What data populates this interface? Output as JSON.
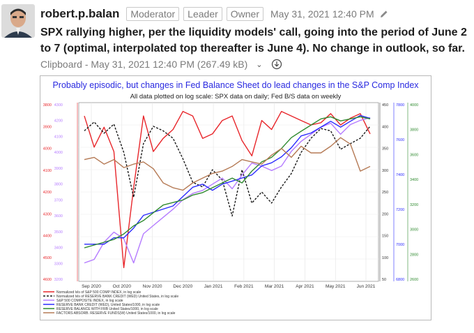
{
  "post": {
    "username": "robert.p.balan",
    "badges": [
      "Moderator",
      "Leader",
      "Owner"
    ],
    "timestamp": "May 31, 2021 12:40 PM",
    "body": "SPX rallying higher, per the liquidity models' call, going into the period of June 2 to 7 (optimal, interpolated top thereafter is June 4). No change in outlook, so far."
  },
  "attachment": {
    "label": "Clipboard - May 31, 2021 12:40 PM (267.49 kB)"
  },
  "chart_data": {
    "type": "line",
    "title": "Probably episodic, but changes in Fed Balance Sheet do lead changes in the S&P Comp Index",
    "subtitle": "All data plotted on log scale: SPX data on daily; Fed B/S data on weekly",
    "x_ticks": [
      "Sep 2020",
      "Oct 2020",
      "Nov 2020",
      "Dec 2020",
      "Jan 2021",
      "Feb 2021",
      "Mar 2021",
      "Apr 2021",
      "May 2021",
      "Jun 2021"
    ],
    "left_axis_outer": [
      "3800",
      "3900",
      "4000",
      "4100",
      "4200",
      "4300",
      "4400",
      "4500",
      "4600"
    ],
    "left_axis_inner": [
      "4300",
      "4200",
      "4100",
      "4000",
      "3900",
      "3800",
      "3700",
      "3600",
      "3500",
      "3400",
      "3300",
      "3200"
    ],
    "right_axis_1": [
      "450",
      "400",
      "350",
      "300",
      "250",
      "200",
      "150",
      "100",
      "50"
    ],
    "right_axis_2": [
      "7800",
      "7600",
      "7400",
      "7200",
      "7000",
      "6800"
    ],
    "right_axis_3": [
      "4000",
      "3800",
      "3600",
      "3400",
      "3200",
      "3000",
      "2800",
      "2600"
    ],
    "legend": [
      "Normalized lvls of S&P 500 COMP INDEX, in log scale",
      "Normalized lvls of RESERVE BANK CREDIT (WED)  United States, in log scale",
      "S&P 500 COMPOSITE INDEX, in log scale",
      "RESERVE BANK CREDIT (WED), United States/1000, in log scale",
      "RESERVE BALANCE WITH FRB  United States/1000, in log scale",
      "FACTORS ABSORB. RESERVE FUNDS(W)  United States/1000, in log scale"
    ],
    "colors": {
      "normalized_spx": "#e8262b",
      "normalized_rbc": "#1a1a1a",
      "spx": "#b57cff",
      "rbc": "#2b2bff",
      "reserve_balance": "#2f8a2f",
      "factors": "#b57a55"
    },
    "series": [
      {
        "name": "Normalized lvls of S&P 500 COMP INDEX, in log scale",
        "values": [
          3820,
          3960,
          3870,
          3980,
          4550,
          4150,
          3820,
          3980,
          3920,
          3880,
          3800,
          3820,
          3920,
          3900,
          3840,
          3820,
          3930,
          4000,
          3840,
          3880,
          3800,
          3820,
          3840,
          3860,
          3850,
          3810,
          3860,
          3830,
          3810,
          3900
        ]
      },
      {
        "name": "Normalized lvls of RESERVE BANK CREDIT (WED)  United States, in log scale",
        "values": [
          330,
          370,
          320,
          360,
          250,
          140,
          280,
          350,
          330,
          300,
          230,
          170,
          160,
          200,
          175,
          110,
          200,
          130,
          150,
          130,
          160,
          190,
          250,
          300,
          340,
          330,
          260,
          280,
          300,
          350
        ]
      },
      {
        "name": "S&P 500 COMPOSITE INDEX, in log scale",
        "values": [
          3280,
          3300,
          3400,
          3460,
          3420,
          3280,
          3450,
          3500,
          3550,
          3600,
          3660,
          3700,
          3720,
          3760,
          3800,
          3730,
          3820,
          3900,
          3880,
          3850,
          3880,
          3980,
          4050,
          4100,
          4150,
          4180,
          4100,
          4170,
          4200,
          4220
        ]
      },
      {
        "name": "RESERVE BANK CREDIT (WED), United States/1000, in log scale",
        "values": [
          7000,
          7000,
          7000,
          7040,
          7040,
          7100,
          7180,
          7200,
          7220,
          7240,
          7300,
          7360,
          7380,
          7340,
          7380,
          7400,
          7420,
          7440,
          7500,
          7520,
          7560,
          7620,
          7700,
          7720,
          7760,
          7800,
          7760,
          7800,
          7840,
          7820
        ]
      },
      {
        "name": "RESERVE BALANCE WITH FRB  United States/1000, in log scale",
        "values": [
          2800,
          2820,
          2840,
          2860,
          2900,
          2960,
          3000,
          3060,
          3120,
          3140,
          3160,
          3200,
          3220,
          3260,
          3300,
          3340,
          3300,
          3400,
          3480,
          3520,
          3600,
          3700,
          3760,
          3820,
          3880,
          3900,
          3860,
          3880,
          3900,
          3880
        ]
      },
      {
        "name": "FACTORS ABSORB. RESERVE FUNDS(W)  United States/1000, in log scale",
        "values": [
          3500,
          3520,
          3460,
          3500,
          3430,
          3460,
          3480,
          3420,
          3300,
          3260,
          3240,
          3300,
          3340,
          3380,
          3400,
          3440,
          3500,
          3480,
          3460,
          3540,
          3600,
          3520,
          3620,
          3560,
          3560,
          3620,
          3700,
          3640,
          3400,
          3440
        ]
      }
    ]
  }
}
